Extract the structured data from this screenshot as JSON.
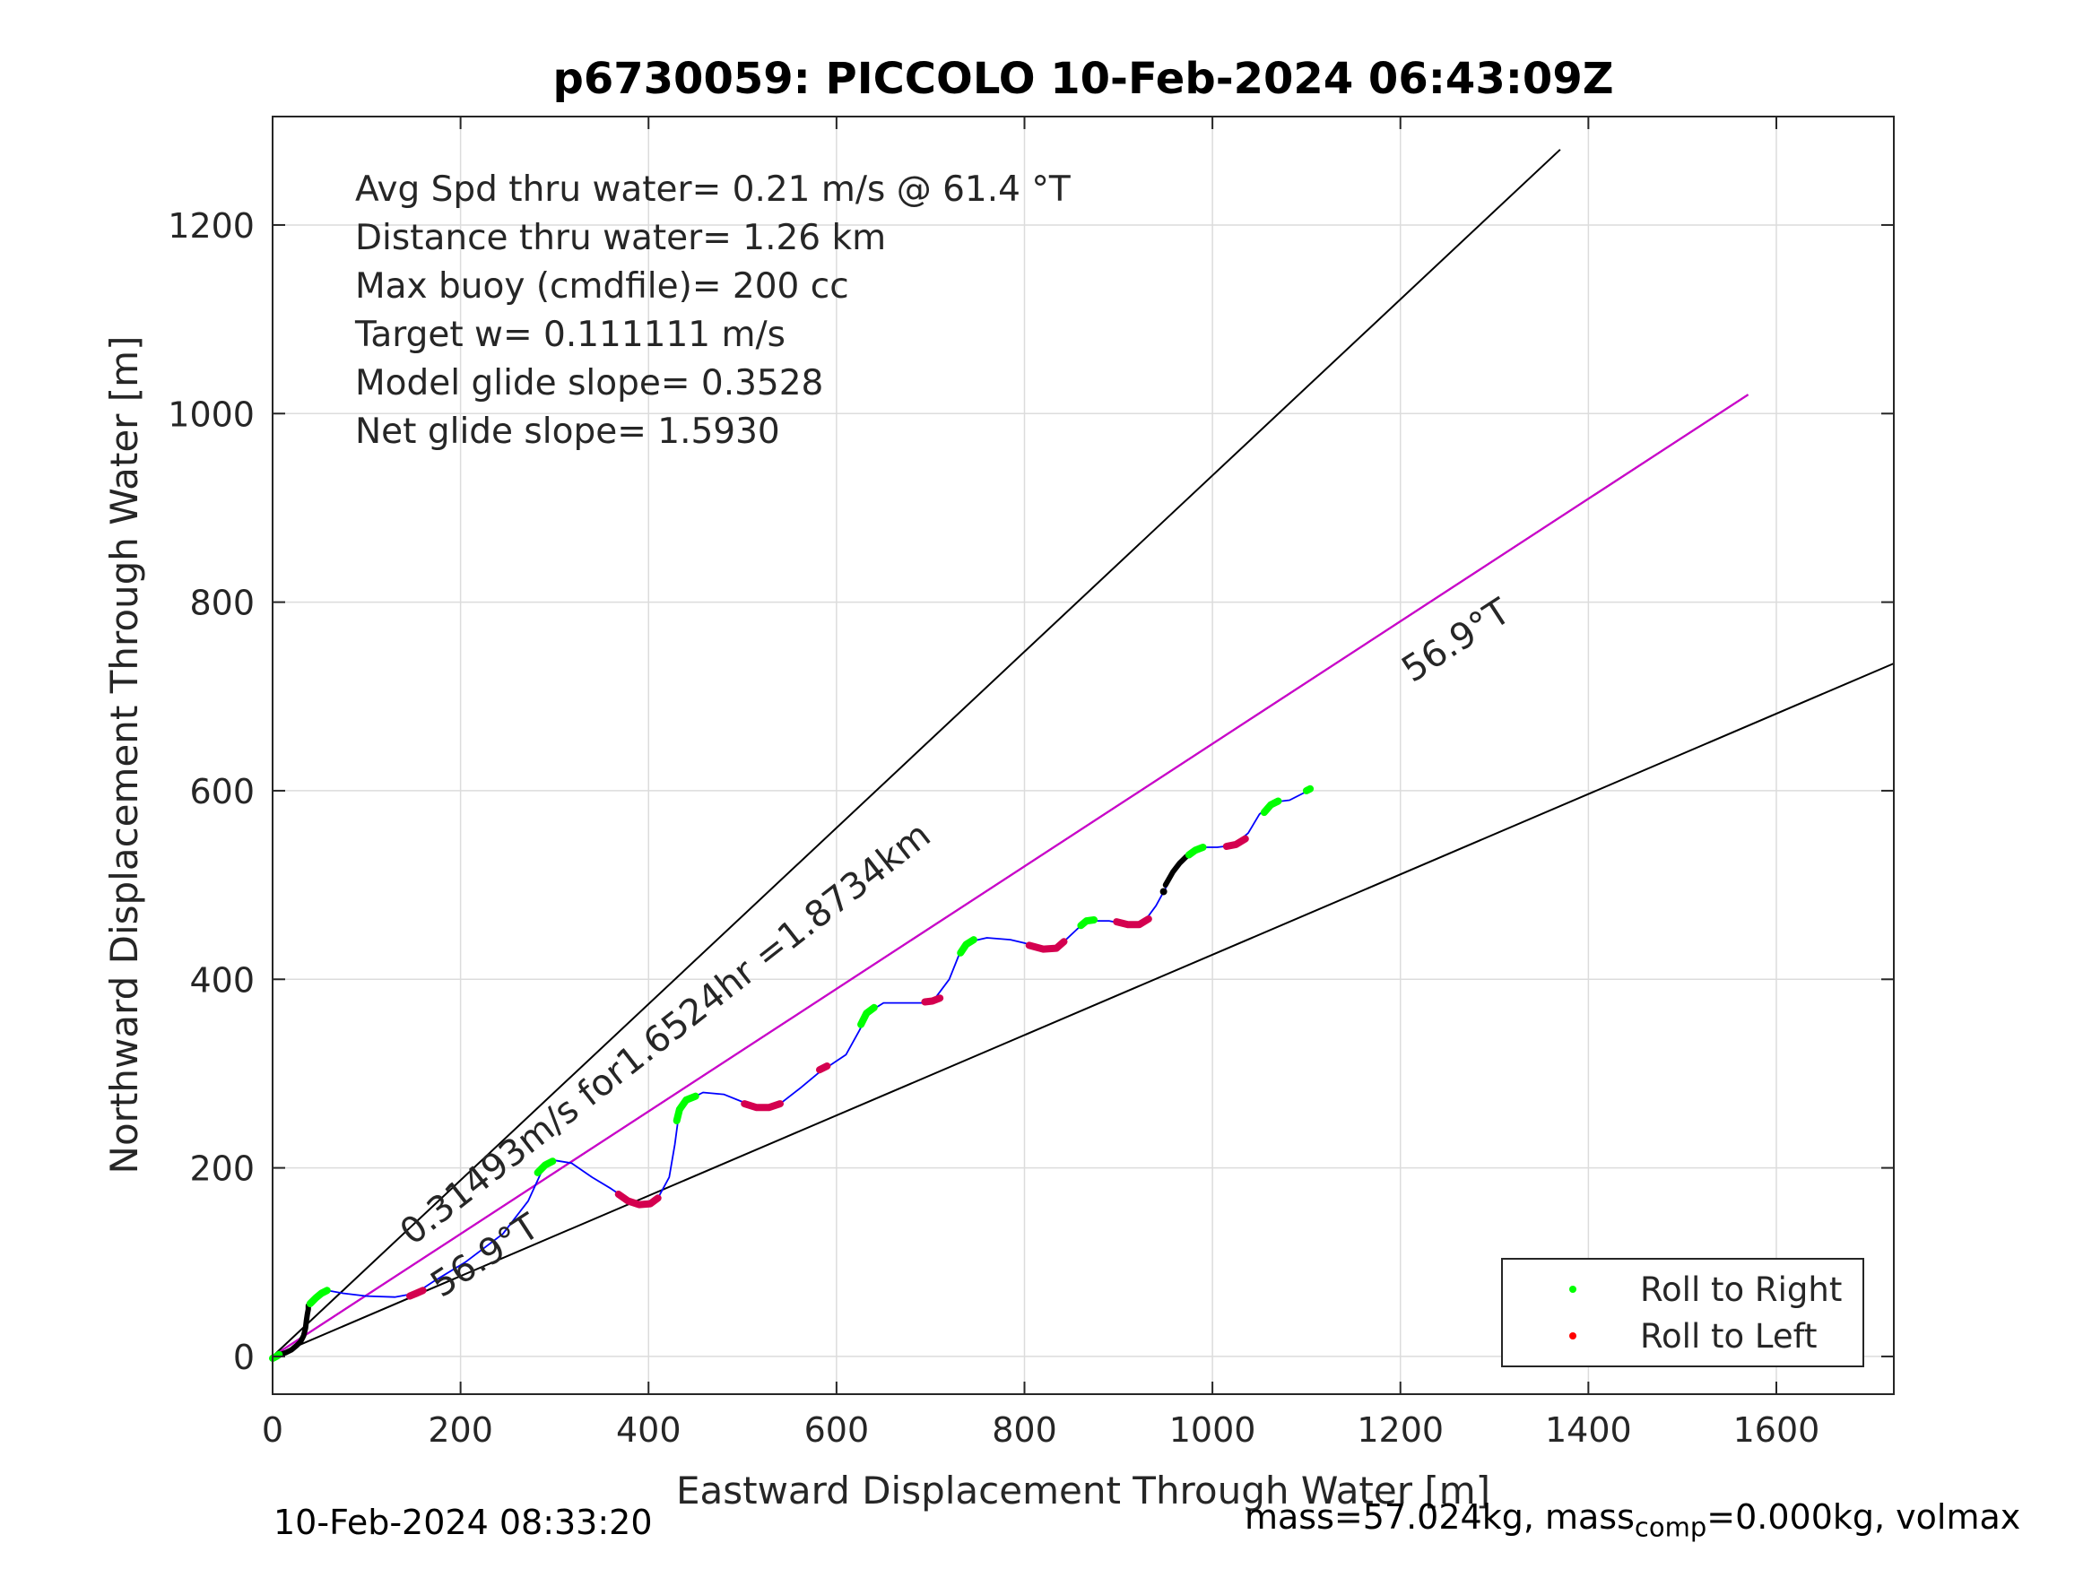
{
  "chart_data": {
    "type": "line",
    "title": "p6730059: PICCOLO 10-Feb-2024 06:43:09Z",
    "xlabel": "Eastward Displacement Through Water [m]",
    "ylabel": "Northward Displacement Through Water [m]",
    "xlim": [
      0,
      1725
    ],
    "ylim": [
      -40,
      1315
    ],
    "xticks": [
      0,
      200,
      400,
      600,
      800,
      1000,
      1200,
      1400,
      1600
    ],
    "yticks": [
      0,
      200,
      400,
      600,
      800,
      1000,
      1200
    ],
    "grid": true,
    "info_lines": [
      "Avg Spd thru water=  0.21 m/s @  61.4 °T",
      "Distance thru water=  1.26 km",
      "Max buoy (cmdfile)= 200 cc",
      "Target w= 0.111111 m/s",
      "Model glide slope= 0.3528",
      "Net glide slope= 1.5930"
    ],
    "annotations": {
      "current": "0.31493m/s for1.6524hr =1.8734km",
      "heading_near": "56.9°T",
      "heading_far": "56.9°T"
    },
    "legend": {
      "location": "bottom-right",
      "entries": [
        {
          "label": "Roll to Right",
          "color": "#00ff00"
        },
        {
          "label": "Roll to Left",
          "color": "#ff0000"
        }
      ]
    },
    "reference_lines": [
      {
        "color": "#000000",
        "points": [
          [
            0,
            0
          ],
          [
            1370,
            1280
          ]
        ]
      },
      {
        "color": "#000000",
        "points": [
          [
            0,
            0
          ],
          [
            1570,
            1020
          ]
        ]
      },
      {
        "color": "#000000",
        "points": [
          [
            0,
            0
          ],
          [
            1725,
            735
          ]
        ]
      },
      {
        "color": "#cc00cc",
        "points": [
          [
            0,
            0
          ],
          [
            1570,
            1020
          ]
        ]
      }
    ],
    "track": {
      "color": "#0000ff",
      "points": [
        [
          0,
          0
        ],
        [
          10,
          4
        ],
        [
          22,
          10
        ],
        [
          30,
          18
        ],
        [
          34,
          30
        ],
        [
          36,
          45
        ],
        [
          40,
          58
        ],
        [
          48,
          66
        ],
        [
          58,
          70
        ],
        [
          75,
          67
        ],
        [
          100,
          64
        ],
        [
          130,
          63
        ],
        [
          152,
          67
        ],
        [
          172,
          80
        ],
        [
          205,
          100
        ],
        [
          245,
          130
        ],
        [
          272,
          165
        ],
        [
          288,
          200
        ],
        [
          300,
          208
        ],
        [
          318,
          205
        ],
        [
          340,
          190
        ],
        [
          360,
          178
        ],
        [
          375,
          168
        ],
        [
          392,
          162
        ],
        [
          410,
          168
        ],
        [
          422,
          190
        ],
        [
          428,
          225
        ],
        [
          432,
          255
        ],
        [
          442,
          272
        ],
        [
          458,
          280
        ],
        [
          480,
          278
        ],
        [
          500,
          270
        ],
        [
          520,
          264
        ],
        [
          540,
          268
        ],
        [
          562,
          285
        ],
        [
          580,
          300
        ],
        [
          592,
          308
        ],
        [
          610,
          320
        ],
        [
          624,
          345
        ],
        [
          634,
          365
        ],
        [
          650,
          375
        ],
        [
          672,
          375
        ],
        [
          695,
          375
        ],
        [
          705,
          380
        ],
        [
          720,
          400
        ],
        [
          730,
          425
        ],
        [
          742,
          440
        ],
        [
          760,
          444
        ],
        [
          785,
          442
        ],
        [
          810,
          436
        ],
        [
          830,
          432
        ],
        [
          842,
          440
        ],
        [
          858,
          455
        ],
        [
          872,
          462
        ],
        [
          890,
          462
        ],
        [
          910,
          458
        ],
        [
          928,
          462
        ],
        [
          940,
          478
        ],
        [
          952,
          500
        ],
        [
          962,
          520
        ],
        [
          972,
          532
        ],
        [
          985,
          540
        ],
        [
          1005,
          540
        ],
        [
          1022,
          542
        ],
        [
          1038,
          555
        ],
        [
          1050,
          575
        ],
        [
          1065,
          588
        ],
        [
          1082,
          590
        ],
        [
          1098,
          598
        ],
        [
          1104,
          602
        ]
      ]
    },
    "start_cluster": {
      "color": "#000000",
      "points": [
        [
          2,
          -2
        ],
        [
          8,
          2
        ],
        [
          14,
          4
        ],
        [
          20,
          7
        ],
        [
          26,
          12
        ],
        [
          30,
          16
        ],
        [
          33,
          22
        ],
        [
          35,
          30
        ],
        [
          36,
          38
        ],
        [
          37,
          45
        ],
        [
          38,
          50
        ],
        [
          38,
          54
        ]
      ]
    },
    "black_segment": {
      "color": "#000000",
      "points": [
        [
          950,
          500
        ],
        [
          958,
          514
        ],
        [
          965,
          523
        ],
        [
          972,
          530
        ],
        [
          978,
          534
        ]
      ]
    },
    "roll_right": {
      "color": "#00ff00",
      "segments": [
        [
          [
            0,
            -2
          ],
          [
            4,
            0
          ],
          [
            7,
            2
          ]
        ],
        [
          [
            40,
            56
          ],
          [
            46,
            62
          ],
          [
            52,
            67
          ],
          [
            58,
            70
          ]
        ],
        [
          [
            282,
            195
          ],
          [
            290,
            203
          ],
          [
            298,
            207
          ]
        ],
        [
          [
            430,
            250
          ],
          [
            433,
            262
          ],
          [
            440,
            272
          ],
          [
            450,
            276
          ]
        ],
        [
          [
            626,
            352
          ],
          [
            632,
            364
          ],
          [
            640,
            370
          ]
        ],
        [
          [
            732,
            428
          ],
          [
            738,
            437
          ],
          [
            746,
            442
          ]
        ],
        [
          [
            860,
            457
          ],
          [
            866,
            462
          ],
          [
            874,
            463
          ]
        ],
        [
          [
            975,
            532
          ],
          [
            982,
            537
          ],
          [
            990,
            540
          ]
        ],
        [
          [
            1055,
            577
          ],
          [
            1062,
            585
          ],
          [
            1070,
            589
          ]
        ],
        [
          [
            1100,
            600
          ],
          [
            1104,
            602
          ]
        ]
      ]
    },
    "roll_left": {
      "color": "#ff0000",
      "segments": [
        [
          [
            146,
            64
          ],
          [
            153,
            67
          ],
          [
            160,
            70
          ]
        ],
        [
          [
            368,
            172
          ],
          [
            378,
            165
          ],
          [
            390,
            161
          ],
          [
            402,
            162
          ],
          [
            410,
            168
          ]
        ],
        [
          [
            502,
            268
          ],
          [
            515,
            264
          ],
          [
            528,
            264
          ],
          [
            540,
            268
          ]
        ],
        [
          [
            582,
            304
          ],
          [
            590,
            308
          ]
        ],
        [
          [
            694,
            376
          ],
          [
            702,
            377
          ],
          [
            710,
            380
          ]
        ],
        [
          [
            805,
            436
          ],
          [
            820,
            432
          ],
          [
            834,
            433
          ],
          [
            842,
            440
          ]
        ],
        [
          [
            898,
            461
          ],
          [
            910,
            458
          ],
          [
            922,
            458
          ],
          [
            932,
            464
          ]
        ],
        [
          [
            1015,
            541
          ],
          [
            1025,
            543
          ],
          [
            1035,
            549
          ]
        ]
      ]
    }
  },
  "footer": {
    "timestamp": "10-Feb-2024 08:33:20",
    "mass_prefix": "mass=57.024kg, mass",
    "mass_sub": "comp",
    "mass_suffix": "=0.000kg, volmax"
  }
}
